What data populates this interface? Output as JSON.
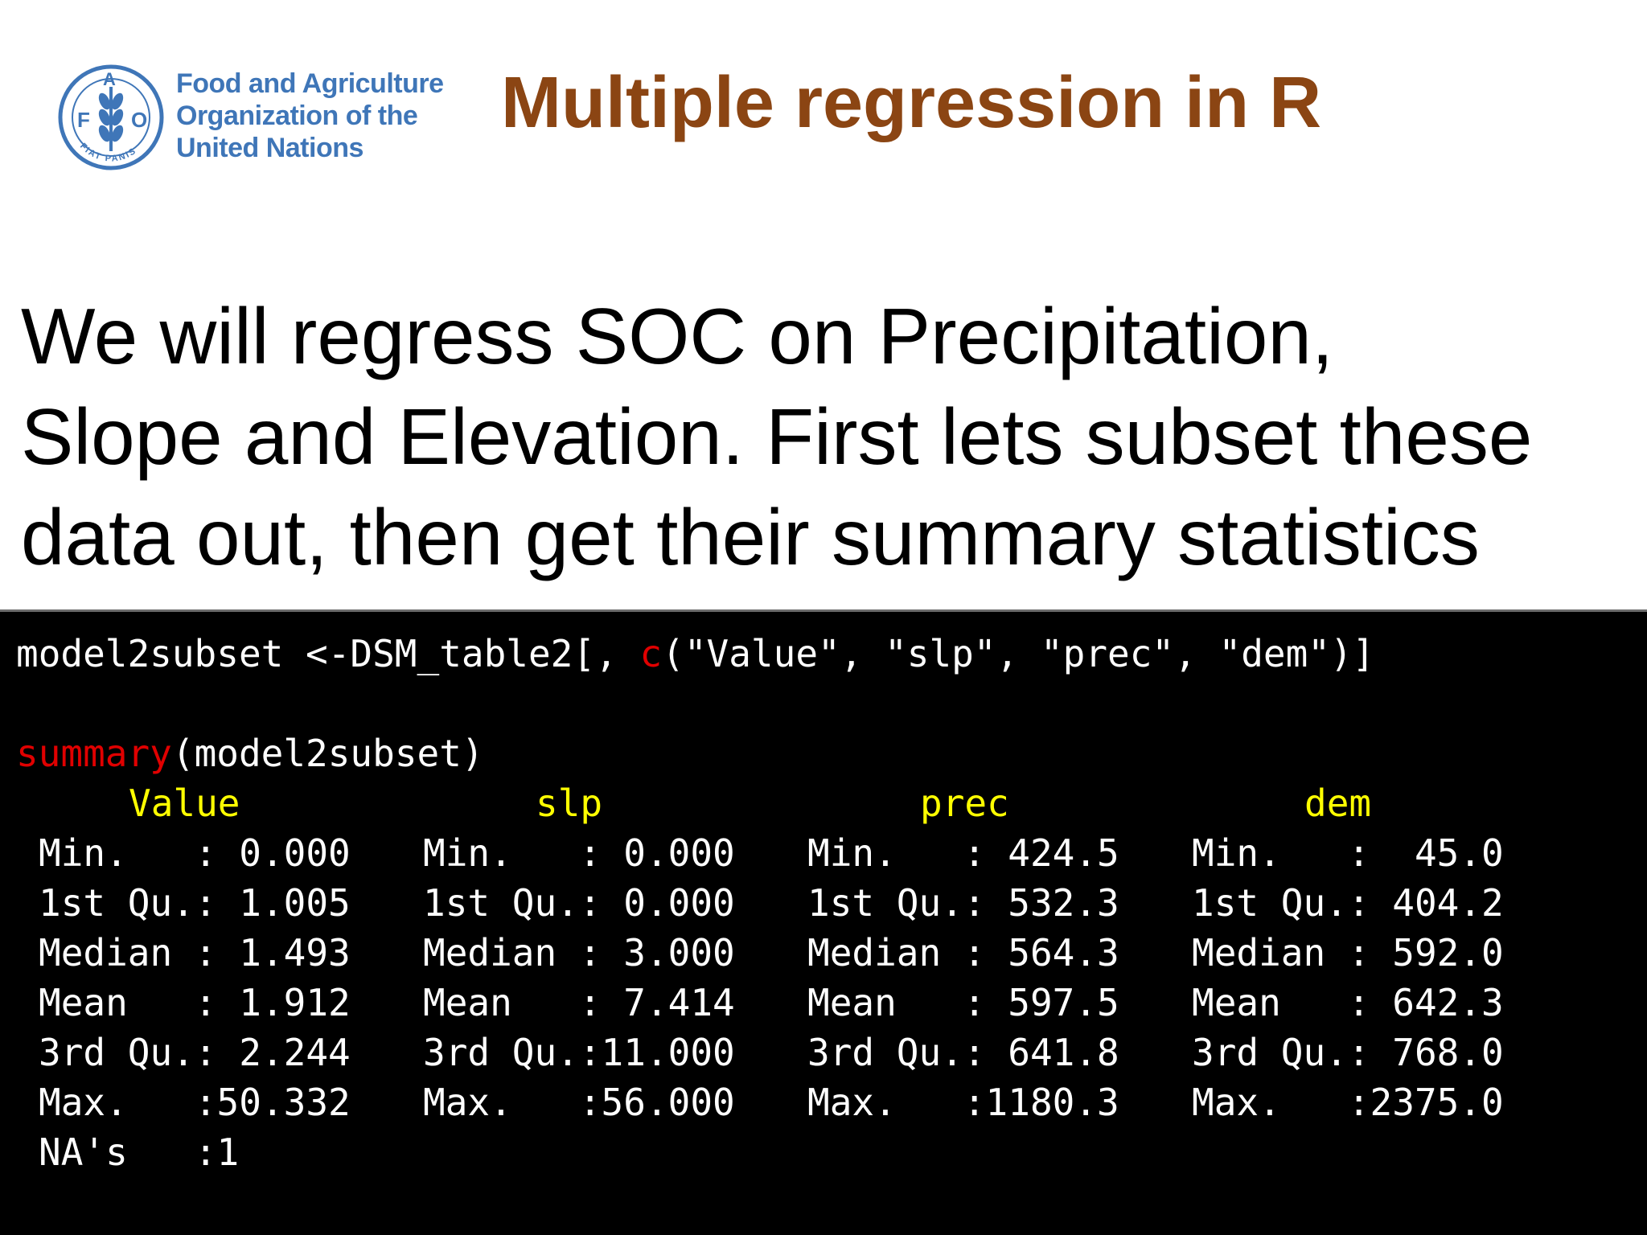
{
  "logo": {
    "org_line1": "Food and Agriculture",
    "org_line2": "Organization of the",
    "org_line3": "United Nations",
    "emblem_letters": [
      "F",
      "A",
      "O"
    ],
    "emblem_motto": "FIAT PANIS",
    "color": "#3f76b8"
  },
  "title": "Multiple regression in R",
  "intro_lines": [
    "We will regress SOC on Precipitation,",
    "Slope and Elevation. First lets subset these",
    "data out, then get their summary statistics"
  ],
  "console": {
    "cmd1_before": "model2subset <-DSM_table2[, ",
    "cmd1_func": "c",
    "cmd1_after": "(\"Value\", \"slp\", \"prec\", \"dem\")]",
    "cmd2_func": "summary",
    "cmd2_after": "(model2subset)",
    "columns": [
      {
        "header": "Value",
        "rows": [
          "Min.   : 0.000",
          "1st Qu.: 1.005",
          "Median : 1.493",
          "Mean   : 1.912",
          "3rd Qu.: 2.244",
          "Max.   :50.332",
          "NA's   :1"
        ]
      },
      {
        "header": "slp",
        "rows": [
          "Min.   : 0.000",
          "1st Qu.: 0.000",
          "Median : 3.000",
          "Mean   : 7.414",
          "3rd Qu.:11.000",
          "Max.   :56.000"
        ]
      },
      {
        "header": "prec",
        "rows": [
          "Min.   : 424.5",
          "1st Qu.: 532.3",
          "Median : 564.3",
          "Mean   : 597.5",
          "3rd Qu.: 641.8",
          "Max.   :1180.3"
        ]
      },
      {
        "header": "dem",
        "rows": [
          "Min.   :  45.0",
          "1st Qu.: 404.2",
          "Median : 592.0",
          "Mean   : 642.3",
          "3rd Qu.: 768.0",
          "Max.   :2375.0"
        ]
      }
    ]
  },
  "colors": {
    "title": "#8b4513",
    "console_bg": "#000000",
    "keyword": "#e00000",
    "header": "#ffff00"
  }
}
